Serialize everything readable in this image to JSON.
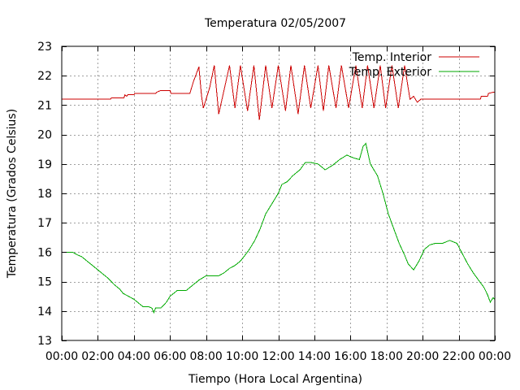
{
  "chart_data": {
    "type": "line",
    "title": "Temperatura 02/05/2007",
    "xlabel": "Tiempo (Hora Local Argentina)",
    "ylabel": "Temperatura (Grados Celsius)",
    "xlim": [
      0,
      24
    ],
    "ylim": [
      13,
      23
    ],
    "x_ticks": [
      0,
      2,
      4,
      6,
      8,
      10,
      12,
      14,
      16,
      18,
      20,
      22,
      24
    ],
    "x_tick_labels": [
      "00:00",
      "02:00",
      "04:00",
      "06:00",
      "08:00",
      "10:00",
      "12:00",
      "14:00",
      "16:00",
      "18:00",
      "20:00",
      "22:00",
      "00:00"
    ],
    "y_ticks": [
      13,
      14,
      15,
      16,
      17,
      18,
      19,
      20,
      21,
      22,
      23
    ],
    "y_tick_labels": [
      "13",
      "14",
      "15",
      "16",
      "17",
      "18",
      "19",
      "20",
      "21",
      "22",
      "23"
    ],
    "grid": true,
    "legend_position": "top-right",
    "series": [
      {
        "name": "Temp. Interior",
        "color": "#cc0000",
        "x": [
          0,
          2.7,
          2.75,
          3.45,
          3.5,
          3.6,
          3.65,
          4.0,
          4.05,
          5.2,
          5.3,
          5.5,
          5.55,
          6.0,
          6.05,
          7.1,
          7.3,
          7.6,
          7.75,
          7.85,
          8.2,
          8.45,
          8.7,
          9.3,
          9.6,
          9.9,
          10.3,
          10.65,
          10.95,
          11.3,
          11.65,
          12.0,
          12.4,
          12.7,
          13.1,
          13.45,
          13.8,
          14.2,
          14.5,
          14.8,
          15.2,
          15.5,
          15.9,
          16.3,
          16.65,
          16.95,
          17.3,
          17.65,
          17.95,
          18.3,
          18.65,
          19.0,
          19.3,
          19.5,
          19.7,
          19.9,
          20.0,
          23.2,
          23.25,
          23.6,
          23.65,
          24.0
        ],
        "values": [
          21.2,
          21.2,
          21.25,
          21.25,
          21.35,
          21.3,
          21.35,
          21.35,
          21.4,
          21.4,
          21.45,
          21.5,
          21.5,
          21.5,
          21.4,
          21.4,
          21.8,
          22.3,
          21.3,
          20.9,
          21.6,
          22.35,
          20.7,
          22.35,
          20.9,
          22.35,
          20.8,
          22.35,
          20.5,
          22.35,
          20.9,
          22.35,
          20.8,
          22.35,
          20.7,
          22.35,
          20.9,
          22.35,
          20.8,
          22.35,
          20.9,
          22.35,
          20.9,
          22.35,
          20.9,
          22.35,
          20.9,
          22.35,
          20.9,
          22.35,
          20.9,
          22.35,
          21.2,
          21.3,
          21.1,
          21.2,
          21.2,
          21.2,
          21.3,
          21.3,
          21.4,
          21.45
        ]
      },
      {
        "name": "Temp. Exterior",
        "color": "#00aa00",
        "x": [
          0,
          0.6,
          0.9,
          1.1,
          1.4,
          1.7,
          2.0,
          2.3,
          2.6,
          2.9,
          3.2,
          3.4,
          3.7,
          4.0,
          4.3,
          4.5,
          4.8,
          5.0,
          5.1,
          5.2,
          5.5,
          5.8,
          6.0,
          6.4,
          6.9,
          7.2,
          7.6,
          8.0,
          8.7,
          9.0,
          9.3,
          9.6,
          9.9,
          10.1,
          10.4,
          10.7,
          11.0,
          11.3,
          11.6,
          12.0,
          12.2,
          12.5,
          12.8,
          13.2,
          13.5,
          13.8,
          14.2,
          14.6,
          15.0,
          15.4,
          15.8,
          16.2,
          16.5,
          16.7,
          16.85,
          17.1,
          17.5,
          17.8,
          18.1,
          18.4,
          18.7,
          19.0,
          19.2,
          19.5,
          19.8,
          20.1,
          20.4,
          20.7,
          21.1,
          21.5,
          21.9,
          22.2,
          22.5,
          22.8,
          23.1,
          23.4,
          23.6,
          23.75,
          23.9,
          24.0
        ],
        "values": [
          16.0,
          16.0,
          15.9,
          15.85,
          15.7,
          15.55,
          15.4,
          15.25,
          15.1,
          14.9,
          14.75,
          14.6,
          14.5,
          14.4,
          14.25,
          14.15,
          14.15,
          14.1,
          13.95,
          14.1,
          14.1,
          14.3,
          14.5,
          14.7,
          14.7,
          14.85,
          15.05,
          15.2,
          15.2,
          15.3,
          15.45,
          15.55,
          15.7,
          15.85,
          16.1,
          16.4,
          16.8,
          17.3,
          17.6,
          18.0,
          18.3,
          18.4,
          18.6,
          18.8,
          19.05,
          19.05,
          19.0,
          18.8,
          18.95,
          19.15,
          19.3,
          19.2,
          19.15,
          19.6,
          19.7,
          19.0,
          18.6,
          18.0,
          17.3,
          16.8,
          16.3,
          15.9,
          15.6,
          15.4,
          15.7,
          16.1,
          16.25,
          16.3,
          16.3,
          16.4,
          16.3,
          15.95,
          15.6,
          15.3,
          15.05,
          14.8,
          14.55,
          14.3,
          14.45,
          14.4
        ]
      }
    ]
  }
}
